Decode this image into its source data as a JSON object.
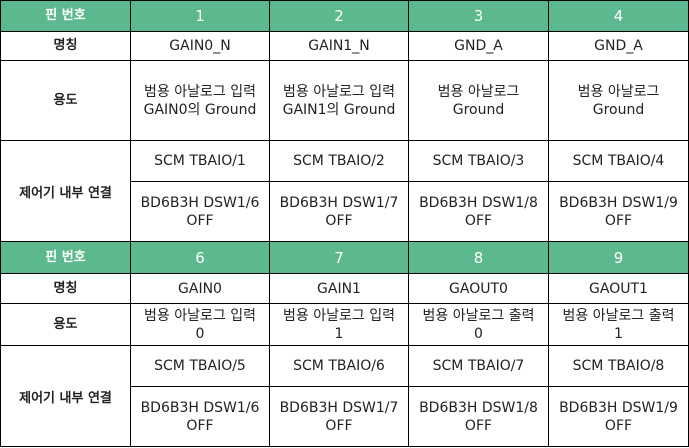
{
  "header_label": "핀 번호",
  "row_labels": {
    "name": "명칭",
    "usage": "용도",
    "control": "제어기 내부 연결"
  },
  "block1": {
    "pins": [
      "1",
      "2",
      "3",
      "4"
    ],
    "names": [
      "GAIN0_N",
      "GAIN1_N",
      "GND_A",
      "GND_A"
    ],
    "usage": [
      [
        "범용 아날로그 입력",
        "GAIN0의 Ground"
      ],
      [
        "범용 아날로그 입력",
        "GAIN1의 Ground"
      ],
      [
        "범용 아날로그",
        "Ground"
      ],
      [
        "범용 아날로그",
        "Ground"
      ]
    ],
    "scm": [
      "SCM TBAIO/1",
      "SCM TBAIO/2",
      "SCM TBAIO/3",
      "SCM TBAIO/4"
    ],
    "dsw": [
      [
        "BD6B3H DSW1/6",
        "OFF"
      ],
      [
        "BD6B3H DSW1/7",
        "OFF"
      ],
      [
        "BD6B3H DSW1/8",
        "OFF"
      ],
      [
        "BD6B3H DSW1/9",
        "OFF"
      ]
    ]
  },
  "block2": {
    "pins": [
      "6",
      "7",
      "8",
      "9"
    ],
    "names": [
      "GAIN0",
      "GAIN1",
      "GAOUT0",
      "GAOUT1"
    ],
    "usage": [
      [
        "범용 아날로그 입력",
        "0"
      ],
      [
        "범용 아날로그 입력",
        "1"
      ],
      [
        "범용 아날로그 출력",
        "0"
      ],
      [
        "범용 아날로그 출력",
        "1"
      ]
    ],
    "scm": [
      "SCM TBAIO/5",
      "SCM TBAIO/6",
      "SCM TBAIO/7",
      "SCM TBAIO/8"
    ],
    "dsw": [
      [
        "BD6B3H DSW1/6",
        "OFF"
      ],
      [
        "BD6B3H DSW1/7",
        "OFF"
      ],
      [
        "BD6B3H DSW1/8",
        "OFF"
      ],
      [
        "BD6B3H DSW1/9",
        "OFF"
      ]
    ]
  },
  "colors": {
    "header_bg": "#5cb98d",
    "header_text": "#ffffff",
    "border": "#000000"
  }
}
